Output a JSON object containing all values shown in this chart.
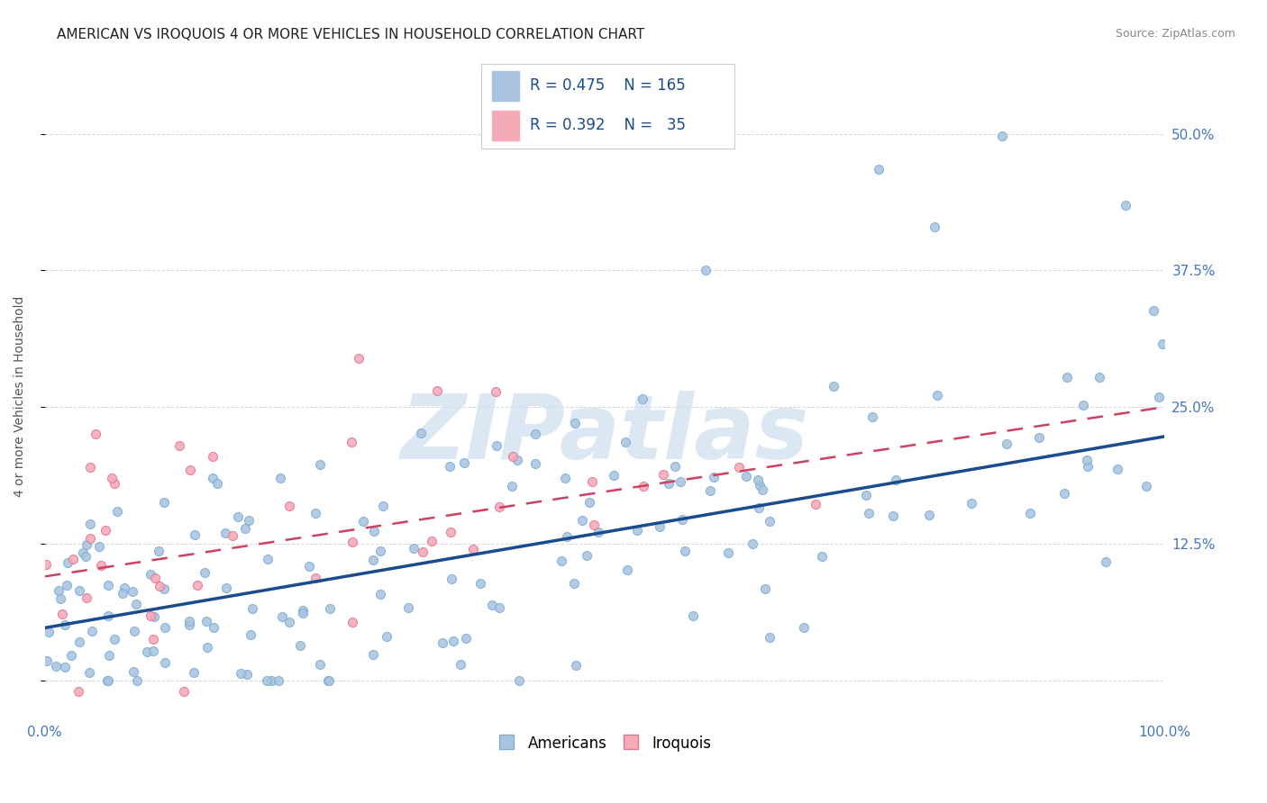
{
  "title": "AMERICAN VS IROQUOIS 4 OR MORE VEHICLES IN HOUSEHOLD CORRELATION CHART",
  "source": "Source: ZipAtlas.com",
  "ylabel": "4 or more Vehicles in Household",
  "xlim": [
    0.0,
    1.0
  ],
  "ylim": [
    -0.035,
    0.555
  ],
  "xticks": [
    0.0,
    0.25,
    0.5,
    0.75,
    1.0
  ],
  "xticklabels": [
    "0.0%",
    "",
    "",
    "",
    "100.0%"
  ],
  "ytick_positions": [
    0.0,
    0.125,
    0.25,
    0.375,
    0.5
  ],
  "yticklabels_right": [
    "",
    "12.5%",
    "25.0%",
    "37.5%",
    "50.0%"
  ],
  "american_R": 0.475,
  "american_N": 165,
  "iroquois_R": 0.392,
  "iroquois_N": 35,
  "american_color": "#aac4e0",
  "american_edge_color": "#7aafd4",
  "american_line_color": "#1a4b8c",
  "iroquois_color": "#f5aab8",
  "iroquois_edge_color": "#e07890",
  "iroquois_line_color": "#d04060",
  "background_color": "#ffffff",
  "grid_color": "#cccccc",
  "watermark_color": "#ccdff0",
  "legend_blue_label": "Americans",
  "legend_pink_label": "Iroquois",
  "title_fontsize": 11,
  "axis_label_fontsize": 10,
  "tick_fontsize": 11,
  "source_fontsize": 9,
  "american_line_intercept": 0.048,
  "american_line_slope": 0.175,
  "iroquois_line_intercept": 0.095,
  "iroquois_line_slope": 0.155
}
